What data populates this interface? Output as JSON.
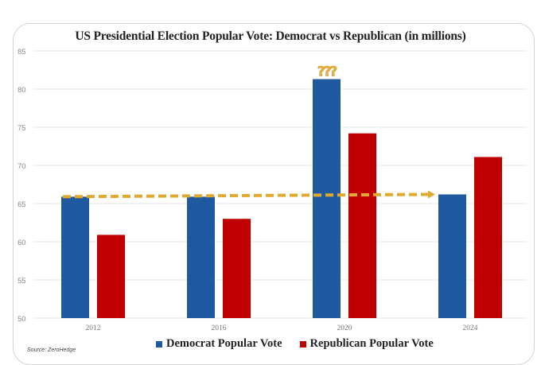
{
  "chart_data": {
    "type": "bar",
    "title": "US Presidential Election Popular Vote: Democrat vs Republican (in millions)",
    "xlabel": "",
    "ylabel": "",
    "categories": [
      "2012",
      "2016",
      "2020",
      "2024"
    ],
    "series": [
      {
        "name": "Democrat Popular Vote",
        "color": "#1f5aa0",
        "values": [
          65.9,
          65.9,
          81.3,
          66.2
        ]
      },
      {
        "name": "Republican Popular Vote",
        "color": "#c00000",
        "values": [
          60.9,
          63.0,
          74.2,
          71.1
        ]
      }
    ],
    "ylim": [
      50,
      85
    ],
    "yticks": [
      "50",
      "55",
      "60",
      "65",
      "70",
      "75",
      "80",
      "85"
    ],
    "grid": true,
    "legend_position": "bottom",
    "annotations": [
      {
        "text": "???",
        "category": "2020",
        "series": "Democrat Popular Vote",
        "color": "#e8b33a"
      },
      {
        "type": "dashed-arrow",
        "from": {
          "category": "2012",
          "value": 65.9
        },
        "to": {
          "category": "2024",
          "value": 66.2
        },
        "color": "#e0aa30"
      }
    ],
    "source": "Source: ZeroHedge"
  }
}
